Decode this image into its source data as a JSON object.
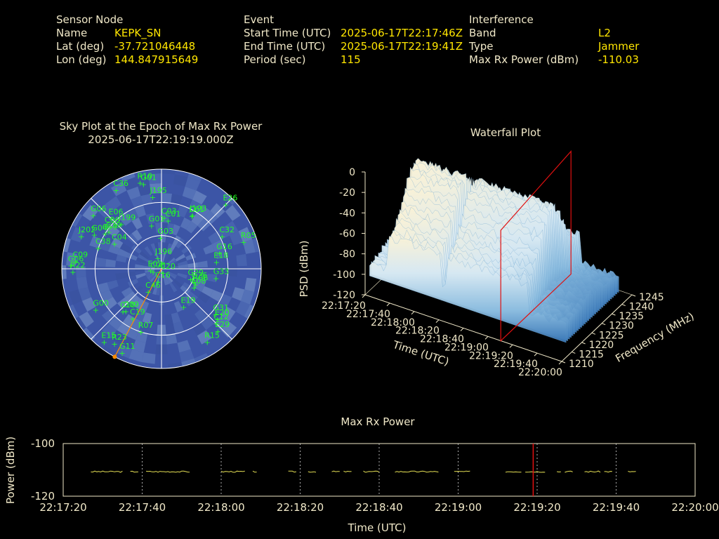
{
  "header": {
    "sensor": {
      "title": "Sensor Node",
      "name_label": "Name",
      "name": "KEPK_SN",
      "lat_label": "Lat (deg)",
      "lat": "-37.721046448",
      "lon_label": "Lon (deg)",
      "lon": "144.847915649"
    },
    "event": {
      "title": "Event",
      "start_label": "Start Time (UTC)",
      "start": "2025-06-17T22:17:46Z",
      "end_label": "End Time (UTC)",
      "end": "2025-06-17T22:19:41Z",
      "period_label": "Period (sec)",
      "period": "115"
    },
    "interference": {
      "title": "Interference",
      "band_label": "Band",
      "band": "L2",
      "type_label": "Type",
      "type": "Jammer",
      "power_label": "Max Rx Power (dBm)",
      "power": "-110.03"
    }
  },
  "colors": {
    "label": "#f0e8c8",
    "value": "#ffe600",
    "sat": "#22ff22",
    "sky": "#3c55a6",
    "trace": "#e6e055",
    "marker": "#e01010"
  },
  "chart_data": [
    {
      "type": "scatter",
      "title": "Sky Plot at the Epoch of Max Rx Power",
      "subtitle": "2025-06-17T22:19:19.000Z",
      "kind": "polar-sky",
      "satellites": [
        {
          "id": "R10",
          "az": 346,
          "el": 10
        },
        {
          "id": "G01",
          "az": 348,
          "el": 12
        },
        {
          "id": "J195",
          "az": 353,
          "el": 25
        },
        {
          "id": "C36",
          "az": 330,
          "el": 8
        },
        {
          "id": "E26",
          "az": 45,
          "el": 8
        },
        {
          "id": "G06",
          "az": 308,
          "el": 12
        },
        {
          "id": "C06",
          "az": 308,
          "el": 28
        },
        {
          "id": "E06",
          "az": 315,
          "el": 26
        },
        {
          "id": "G04",
          "az": 297,
          "el": 22
        },
        {
          "id": "J199",
          "az": 318,
          "el": 36
        },
        {
          "id": "C39",
          "az": 305,
          "el": 32
        },
        {
          "id": "C59",
          "az": 302,
          "el": 30
        },
        {
          "id": "G01",
          "az": 347,
          "el": 50
        },
        {
          "id": "C01",
          "az": 8,
          "el": 46
        },
        {
          "id": "C03",
          "az": 3,
          "el": 44
        },
        {
          "id": "C61",
          "az": 30,
          "el": 35
        },
        {
          "id": "J193",
          "az": 30,
          "el": 34
        },
        {
          "id": "J202",
          "az": 292,
          "el": 12
        },
        {
          "id": "C38",
          "az": 288,
          "el": 30
        },
        {
          "id": "C04",
          "az": 298,
          "el": 42
        },
        {
          "id": "G03",
          "az": 358,
          "el": 62
        },
        {
          "id": "C32",
          "az": 62,
          "el": 28
        },
        {
          "id": "R05",
          "az": 72,
          "el": 12
        },
        {
          "id": "G16",
          "az": 75,
          "el": 36
        },
        {
          "id": "E18",
          "az": 83,
          "el": 40
        },
        {
          "id": "G06",
          "az": 272,
          "el": 8
        },
        {
          "id": "C09",
          "az": 275,
          "el": 12
        },
        {
          "id": "J196",
          "az": 341,
          "el": 80
        },
        {
          "id": "E02",
          "az": 260,
          "el": 80
        },
        {
          "id": "R22",
          "az": 268,
          "el": 10
        },
        {
          "id": "C08",
          "az": 250,
          "el": 82
        },
        {
          "id": "C20",
          "az": 160,
          "el": 86
        },
        {
          "id": "G29",
          "az": 110,
          "el": 62
        },
        {
          "id": "G26",
          "az": 112,
          "el": 58
        },
        {
          "id": "R06",
          "az": 115,
          "el": 56
        },
        {
          "id": "E08",
          "az": 120,
          "el": 56
        },
        {
          "id": "G33",
          "az": 100,
          "el": 40
        },
        {
          "id": "C16",
          "az": 195,
          "el": 78
        },
        {
          "id": "C46",
          "az": 210,
          "el": 66
        },
        {
          "id": "G09",
          "az": 220,
          "el": 40
        },
        {
          "id": "C10",
          "az": 222,
          "el": 38
        },
        {
          "id": "C19",
          "az": 210,
          "el": 38
        },
        {
          "id": "E19",
          "az": 150,
          "el": 50
        },
        {
          "id": "G00",
          "az": 238,
          "el": 20
        },
        {
          "id": "R07",
          "az": 198,
          "el": 30
        },
        {
          "id": "G31",
          "az": 130,
          "el": 26
        },
        {
          "id": "E20",
          "az": 132,
          "el": 22
        },
        {
          "id": "C12",
          "az": 135,
          "el": 20
        },
        {
          "id": "E29",
          "az": 138,
          "el": 14
        },
        {
          "id": "R15",
          "az": 148,
          "el": 12
        },
        {
          "id": "E15",
          "az": 218,
          "el": 6
        },
        {
          "id": "R23",
          "az": 212,
          "el": 10
        },
        {
          "id": "G11",
          "az": 205,
          "el": 6
        }
      ],
      "jammer_azimuth": 208
    },
    {
      "type": "area",
      "title": "Waterfall Plot",
      "kind": "3d-waterfall",
      "xlabel": "Time (UTC)",
      "ylabel": "Frequency (MHz)",
      "zlabel": "PSD (dBm)",
      "time_ticks": [
        "22:17:20",
        "22:17:40",
        "22:18:00",
        "22:18:20",
        "22:18:40",
        "22:19:00",
        "22:19:20",
        "22:19:40",
        "22:20:00"
      ],
      "freq_ticks": [
        "1210",
        "1215",
        "1220",
        "1225",
        "1230",
        "1235",
        "1240",
        "1245"
      ],
      "z_ticks": [
        "0",
        "-20",
        "-40",
        "-60",
        "-80",
        "-100",
        "-120"
      ],
      "zlim": [
        -120,
        0
      ]
    },
    {
      "type": "line",
      "title": "Max Rx Power",
      "xlabel": "Time (UTC)",
      "ylabel": "Power (dBm)",
      "ylim": [
        -120,
        -100
      ],
      "x_ticks": [
        "22:17:20",
        "22:17:40",
        "22:18:00",
        "22:18:20",
        "22:18:40",
        "22:19:00",
        "22:19:20",
        "22:19:40",
        "22:20:00"
      ],
      "y_ticks": [
        "-100",
        "-120"
      ],
      "segments_seconds": [
        [
          7,
          15
        ],
        [
          17,
          19
        ],
        [
          21,
          32
        ],
        [
          40,
          46
        ],
        [
          48,
          49
        ],
        [
          57,
          59
        ],
        [
          62,
          64
        ],
        [
          68,
          70
        ],
        [
          71,
          73
        ],
        [
          76,
          77
        ],
        [
          77,
          80
        ],
        [
          84,
          95
        ],
        [
          99,
          103
        ],
        [
          112,
          116
        ],
        [
          117,
          122
        ],
        [
          125,
          126
        ],
        [
          127,
          129
        ],
        [
          132,
          136
        ],
        [
          137,
          139
        ],
        [
          143,
          145
        ]
      ],
      "marker_seconds": 119,
      "value": -110.03
    }
  ]
}
